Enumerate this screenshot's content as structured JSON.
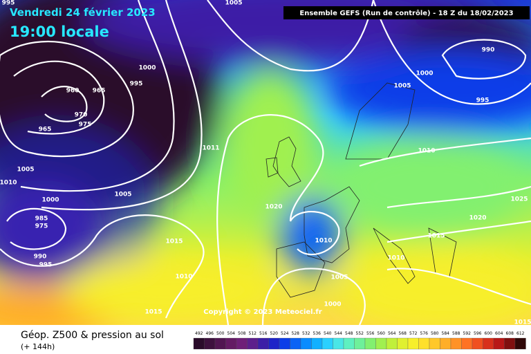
{
  "header": {
    "date": "Vendredi 24 février 2023",
    "time": "19:00 locale",
    "run": "Ensemble GEFS  (Run de contrôle)  -  18 Z du 18/02/2023"
  },
  "copyright": "Copyright © 2023 Meteociel.fr",
  "footer": {
    "title": "Géop. Z500 & pression au sol",
    "lead": "(+ 144h)"
  },
  "isobar_labels": [
    "995",
    "1005",
    "1000",
    "995",
    "960",
    "965",
    "970",
    "975",
    "965",
    "1005",
    "1010",
    "1000",
    "985",
    "975",
    "990",
    "995",
    "1005",
    "1011",
    "1020",
    "1015",
    "1010",
    "1015",
    "1010",
    "1005",
    "1000",
    "1005",
    "1000",
    "990",
    "995",
    "1010",
    "1025",
    "1020",
    "1015",
    "1010",
    "1015"
  ],
  "legend": {
    "labels": [
      "492",
      "496",
      "500",
      "504",
      "508",
      "512",
      "516",
      "520",
      "524",
      "528",
      "532",
      "536",
      "540",
      "544",
      "548",
      "552",
      "556",
      "560",
      "564",
      "568",
      "572",
      "576",
      "580",
      "584",
      "588",
      "592",
      "596",
      "600",
      "604",
      "608",
      "612"
    ],
    "colors": [
      "#2a0c2a",
      "#3d113d",
      "#511651",
      "#641b64",
      "#6f1f78",
      "#5d1f8c",
      "#3c1fa6",
      "#1e24c8",
      "#0d3ee8",
      "#0a63f5",
      "#0a8cff",
      "#12b0ff",
      "#2ad0ff",
      "#4ae6e6",
      "#5ef0c0",
      "#6ef09a",
      "#82f070",
      "#a0f050",
      "#c0f03a",
      "#e0f030",
      "#f7ef2a",
      "#ffe02a",
      "#ffc82a",
      "#ffae28",
      "#ff9226",
      "#ff7224",
      "#f05020",
      "#d8301c",
      "#b81818",
      "#801010",
      "#300808"
    ]
  }
}
